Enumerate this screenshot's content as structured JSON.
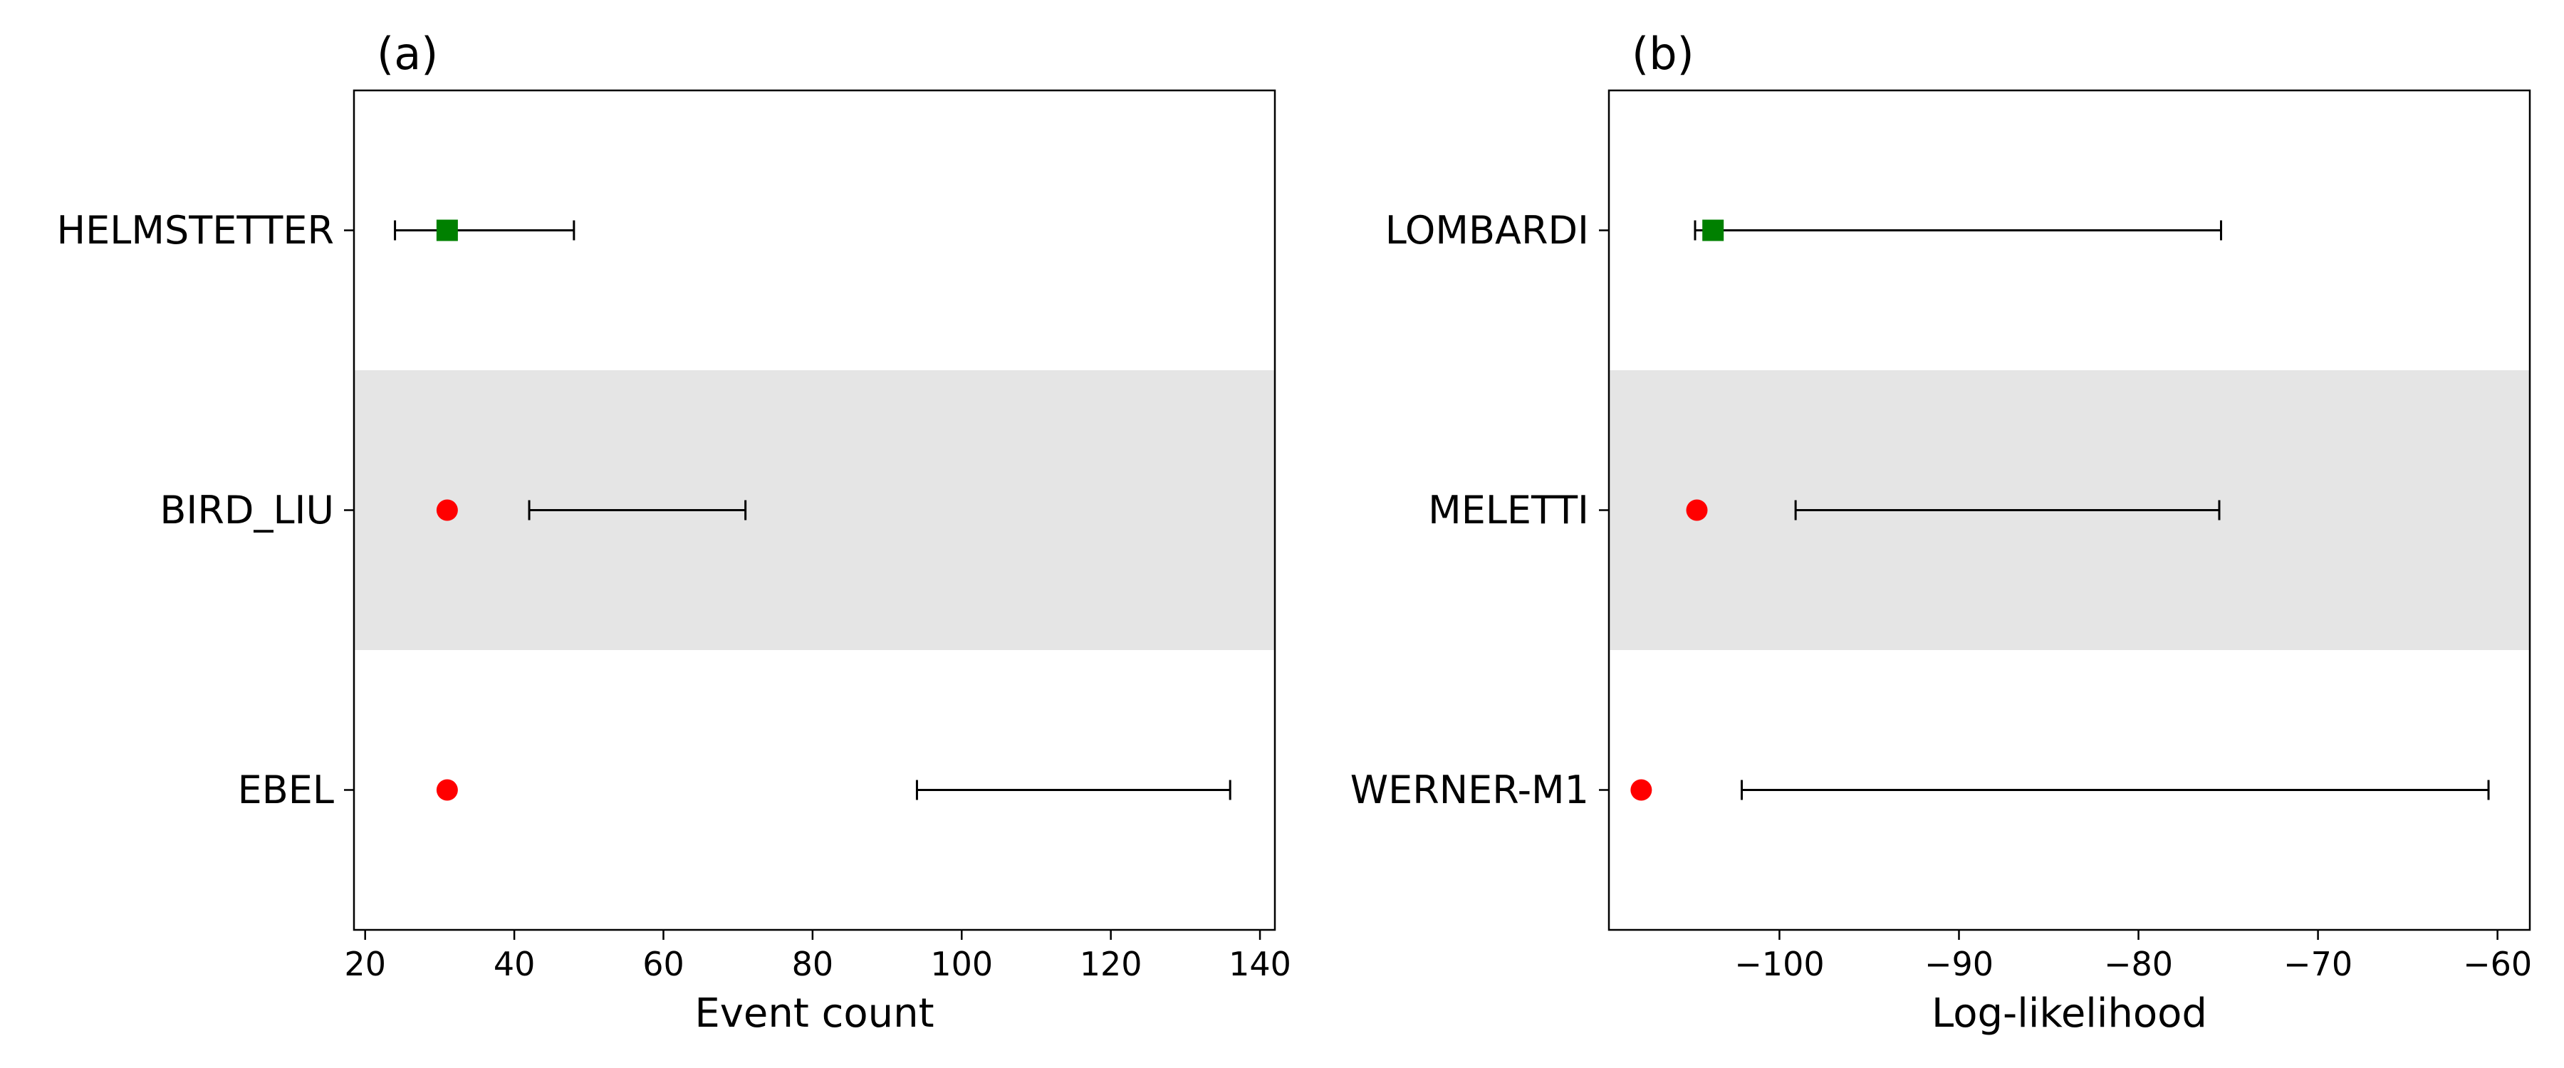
{
  "chart_data": [
    {
      "type": "interval-comparison",
      "panel_label": "(a)",
      "xlabel": "Event count",
      "xlim": [
        18.5,
        142
      ],
      "xticks": [
        20,
        40,
        60,
        80,
        100,
        120,
        140
      ],
      "xtick_labels": [
        "20",
        "40",
        "60",
        "80",
        "100",
        "120",
        "140"
      ],
      "grid": false,
      "categories": [
        "HELMSTETTER",
        "BIRD_LIU",
        "EBEL"
      ],
      "shaded_rows": [
        1
      ],
      "observed": [
        31,
        31,
        31
      ],
      "observed_markers": [
        "square",
        "circle",
        "circle"
      ],
      "observed_colors": [
        "#008000",
        "#ff0000",
        "#ff0000"
      ],
      "intervals": [
        [
          24,
          48
        ],
        [
          42,
          71
        ],
        [
          94,
          136
        ]
      ]
    },
    {
      "type": "interval-comparison",
      "panel_label": "(b)",
      "xlabel": "Log-likelihood",
      "xlim": [
        -109.5,
        -58.2
      ],
      "xticks": [
        -100,
        -90,
        -80,
        -70,
        -60
      ],
      "xtick_labels": [
        "−100",
        "−90",
        "−80",
        "−70",
        "−60"
      ],
      "grid": false,
      "categories": [
        "LOMBARDI",
        "MELETTI",
        "WERNER-M1"
      ],
      "shaded_rows": [
        1
      ],
      "observed": [
        -103.7,
        -104.6,
        -107.7
      ],
      "observed_markers": [
        "square",
        "circle",
        "circle"
      ],
      "observed_colors": [
        "#008000",
        "#ff0000",
        "#ff0000"
      ],
      "intervals": [
        [
          -104.7,
          -75.4
        ],
        [
          -99.1,
          -75.5
        ],
        [
          -102.1,
          -60.5
        ]
      ]
    }
  ],
  "colors": {
    "shade": "#e5e5e5",
    "axes": "#000000",
    "errorbar": "#000000"
  }
}
